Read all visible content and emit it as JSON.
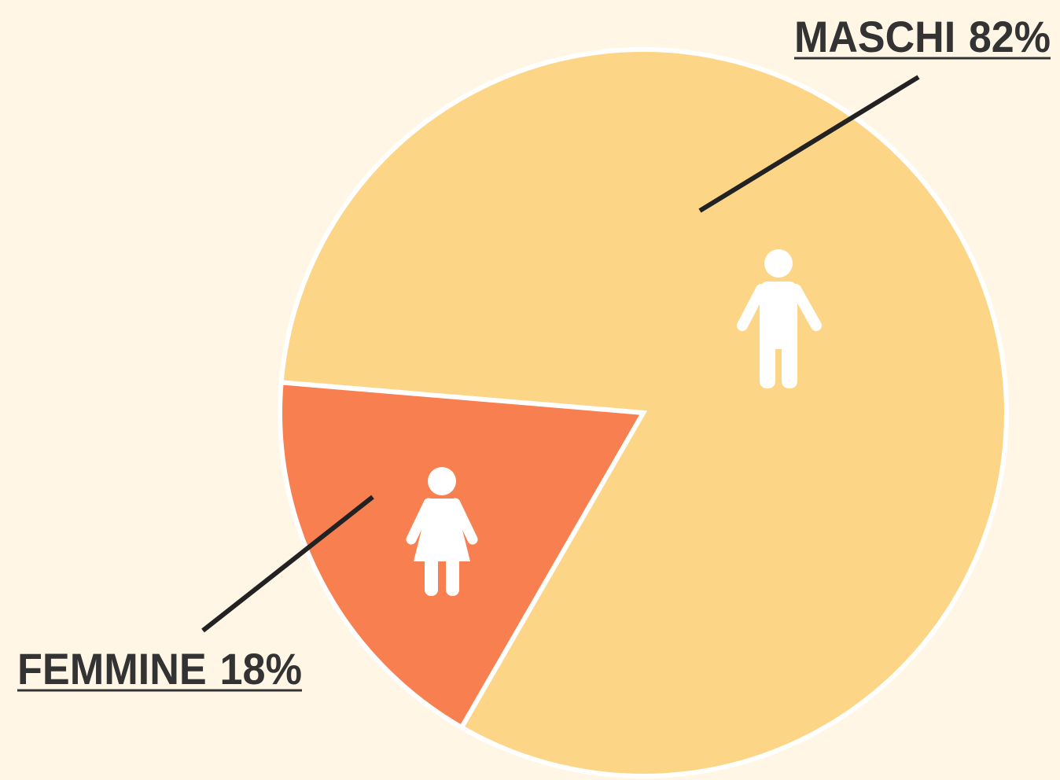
{
  "chart_data": {
    "type": "pie",
    "categories": [
      "MASCHI",
      "FEMMINE"
    ],
    "values": [
      82,
      18
    ],
    "value_labels": [
      "82%",
      "18%"
    ],
    "colors": [
      "#fdd587",
      "#f88050"
    ]
  }
}
